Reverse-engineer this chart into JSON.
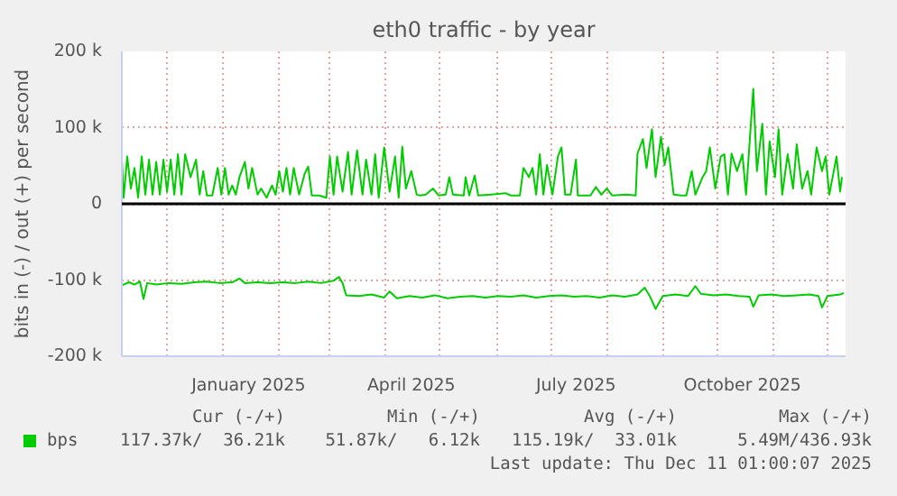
{
  "chart_data": {
    "type": "line",
    "title": "eth0 traffic - by year",
    "ylabel": "bits in (-) / out (+) per second",
    "xlim": [
      "2024-11-06",
      "2025-12-11"
    ],
    "xticks": [
      {
        "value": "2024-12-01",
        "label": null
      },
      {
        "value": "2025-01-01",
        "label": null
      },
      {
        "value": "2025-01-15",
        "label": "January 2025"
      },
      {
        "value": "2025-02-01",
        "label": null
      },
      {
        "value": "2025-03-01",
        "label": null
      },
      {
        "value": "2025-04-01",
        "label": null
      },
      {
        "value": "2025-04-15",
        "label": "April 2025"
      },
      {
        "value": "2025-05-01",
        "label": null
      },
      {
        "value": "2025-06-01",
        "label": null
      },
      {
        "value": "2025-07-01",
        "label": null
      },
      {
        "value": "2025-07-15",
        "label": "July 2025"
      },
      {
        "value": "2025-08-01",
        "label": null
      },
      {
        "value": "2025-09-01",
        "label": null
      },
      {
        "value": "2025-10-01",
        "label": null
      },
      {
        "value": "2025-10-15",
        "label": "October 2025"
      },
      {
        "value": "2025-11-01",
        "label": null
      },
      {
        "value": "2025-12-01",
        "label": null
      }
    ],
    "ylim": [
      -200,
      200
    ],
    "yticks": [
      {
        "value": -200,
        "label": "-200 k"
      },
      {
        "value": -100,
        "label": "-100 k"
      },
      {
        "value": 0,
        "label": "0"
      },
      {
        "value": 100,
        "label": "100 k"
      },
      {
        "value": 200,
        "label": "200 k"
      }
    ],
    "grid": true,
    "legend": "bottom",
    "ref_lines": [
      {
        "axis": "y",
        "value": 0,
        "label": null,
        "color": "#000000"
      }
    ],
    "annotations": [
      "Cur (-/+)",
      "Min (-/+)",
      "Avg (-/+)",
      "Max (-/+)",
      "117.37k/  36.21k",
      "51.87k/   6.12k",
      "115.19k/  33.01k",
      "5.49M/436.93k",
      "Last update: Thu Dec 11 01:00:07 2025"
    ],
    "series": [
      {
        "name": "bps",
        "color": "#00cc00",
        "x": [
          "2024-11-06",
          "2024-11-07",
          "2024-11-09",
          "2024-11-11",
          "2024-11-13",
          "2024-11-15",
          "2024-11-17",
          "2024-11-19",
          "2024-11-21",
          "2024-11-23",
          "2024-11-25",
          "2024-11-27",
          "2024-11-29",
          "2024-12-01",
          "2024-12-03",
          "2024-12-05",
          "2024-12-07",
          "2024-12-09",
          "2024-12-11",
          "2024-12-14",
          "2024-12-17",
          "2024-12-19",
          "2024-12-21",
          "2024-12-23",
          "2024-12-26",
          "2024-12-29",
          "2024-12-31",
          "2025-01-02",
          "2025-01-04",
          "2025-01-06",
          "2025-01-08",
          "2025-01-10",
          "2025-01-13",
          "2025-01-15",
          "2025-01-17",
          "2025-01-20",
          "2025-01-22",
          "2025-01-25",
          "2025-01-28",
          "2025-01-30",
          "2025-02-01",
          "2025-02-03",
          "2025-02-05",
          "2025-02-07",
          "2025-02-09",
          "2025-02-12",
          "2025-02-15",
          "2025-02-17",
          "2025-02-19",
          "2025-02-23",
          "2025-02-27",
          "2025-03-01",
          "2025-03-03",
          "2025-03-05",
          "2025-03-08",
          "2025-03-11",
          "2025-03-13",
          "2025-03-16",
          "2025-03-19",
          "2025-03-21",
          "2025-03-24",
          "2025-03-26",
          "2025-03-28",
          "2025-03-31",
          "2025-04-03",
          "2025-04-06",
          "2025-04-08",
          "2025-04-10",
          "2025-04-12",
          "2025-04-15",
          "2025-04-18",
          "2025-04-20",
          "2025-04-23",
          "2025-04-27",
          "2025-04-30",
          "2025-05-04",
          "2025-05-06",
          "2025-05-08",
          "2025-05-14",
          "2025-05-15",
          "2025-05-17",
          "2025-05-20",
          "2025-05-22",
          "2025-05-29",
          "2025-06-06",
          "2025-06-09",
          "2025-06-14",
          "2025-06-16",
          "2025-06-19",
          "2025-06-21",
          "2025-06-23",
          "2025-06-25",
          "2025-06-27",
          "2025-06-29",
          "2025-07-02",
          "2025-07-05",
          "2025-07-07",
          "2025-07-09",
          "2025-07-12",
          "2025-07-15",
          "2025-07-16",
          "2025-07-23",
          "2025-07-26",
          "2025-07-29",
          "2025-08-01",
          "2025-08-04",
          "2025-08-12",
          "2025-08-17",
          "2025-08-18",
          "2025-08-21",
          "2025-08-23",
          "2025-08-26",
          "2025-08-28",
          "2025-08-31",
          "2025-09-02",
          "2025-09-04",
          "2025-09-07",
          "2025-09-11",
          "2025-09-14",
          "2025-09-17",
          "2025-09-19",
          "2025-09-23",
          "2025-09-25",
          "2025-09-27",
          "2025-09-30",
          "2025-10-03",
          "2025-10-05",
          "2025-10-07",
          "2025-10-09",
          "2025-10-12",
          "2025-10-15",
          "2025-10-17",
          "2025-10-21",
          "2025-10-23",
          "2025-10-26",
          "2025-10-28",
          "2025-10-30",
          "2025-11-02",
          "2025-11-04",
          "2025-11-06",
          "2025-11-09",
          "2025-11-12",
          "2025-11-14",
          "2025-11-17",
          "2025-11-20",
          "2025-11-22",
          "2025-11-25",
          "2025-11-28",
          "2025-11-30",
          "2025-12-02",
          "2025-12-06",
          "2025-12-08",
          "2025-12-09"
        ],
        "values": [
          58,
          8,
          62,
          20,
          47,
          8,
          62,
          12,
          58,
          12,
          55,
          12,
          58,
          16,
          58,
          12,
          65,
          12,
          65,
          35,
          58,
          12,
          43,
          11,
          11,
          47,
          12,
          47,
          12,
          24,
          12,
          35,
          55,
          20,
          47,
          12,
          20,
          8,
          24,
          12,
          43,
          16,
          47,
          12,
          47,
          12,
          39,
          49,
          11,
          11,
          8,
          62,
          12,
          62,
          16,
          68,
          12,
          70,
          12,
          58,
          12,
          65,
          8,
          74,
          16,
          62,
          8,
          75,
          20,
          43,
          12,
          11,
          12,
          20,
          11,
          12,
          35,
          12,
          11,
          35,
          11,
          37,
          11,
          12,
          14,
          11,
          11,
          47,
          35,
          47,
          12,
          65,
          12,
          51,
          12,
          62,
          74,
          12,
          12,
          58,
          11,
          11,
          22,
          12,
          20,
          11,
          12,
          11,
          66,
          85,
          47,
          98,
          35,
          88,
          51,
          74,
          12,
          11,
          11,
          43,
          12,
          35,
          43,
          74,
          20,
          62,
          65,
          12,
          66,
          43,
          65,
          12,
          151,
          43,
          105,
          12,
          82,
          35,
          98,
          12,
          65,
          20,
          78,
          20,
          43,
          12,
          74,
          43,
          62,
          12,
          62,
          16,
          35
        ]
      },
      {
        "color": "#00cc00",
        "x": [
          "2024-11-06",
          "2024-11-10",
          "2024-11-13",
          "2024-11-16",
          "2024-11-18",
          "2024-11-20",
          "2024-11-25",
          "2024-12-02",
          "2024-12-09",
          "2024-12-16",
          "2024-12-23",
          "2024-12-30",
          "2025-01-06",
          "2025-01-10",
          "2025-01-13",
          "2025-01-20",
          "2025-01-27",
          "2025-02-03",
          "2025-02-10",
          "2025-02-17",
          "2025-02-24",
          "2025-03-03",
          "2025-03-06",
          "2025-03-08",
          "2025-03-10",
          "2025-03-17",
          "2025-03-24",
          "2025-03-31",
          "2025-04-03",
          "2025-04-07",
          "2025-04-14",
          "2025-04-21",
          "2025-04-28",
          "2025-05-05",
          "2025-05-12",
          "2025-05-19",
          "2025-05-26",
          "2025-06-02",
          "2025-06-09",
          "2025-06-16",
          "2025-06-23",
          "2025-06-30",
          "2025-07-07",
          "2025-07-14",
          "2025-07-21",
          "2025-07-28",
          "2025-08-04",
          "2025-08-11",
          "2025-08-18",
          "2025-08-22",
          "2025-08-25",
          "2025-08-28",
          "2025-09-01",
          "2025-09-08",
          "2025-09-15",
          "2025-09-19",
          "2025-09-22",
          "2025-09-29",
          "2025-10-06",
          "2025-10-13",
          "2025-10-19",
          "2025-10-21",
          "2025-10-24",
          "2025-10-31",
          "2025-11-07",
          "2025-11-14",
          "2025-11-21",
          "2025-11-26",
          "2025-11-28",
          "2025-12-01",
          "2025-12-08",
          "2025-12-10"
        ],
        "values": [
          -107,
          -103,
          -106,
          -102,
          -125,
          -104,
          -106,
          -104,
          -105,
          -103,
          -102,
          -104,
          -103,
          -98,
          -104,
          -103,
          -104,
          -103,
          -104,
          -102,
          -104,
          -101,
          -96,
          -104,
          -120,
          -121,
          -119,
          -123,
          -115,
          -124,
          -121,
          -123,
          -120,
          -124,
          -122,
          -121,
          -123,
          -121,
          -122,
          -120,
          -123,
          -121,
          -120,
          -122,
          -121,
          -123,
          -120,
          -122,
          -119,
          -110,
          -122,
          -138,
          -121,
          -119,
          -121,
          -108,
          -118,
          -120,
          -119,
          -121,
          -122,
          -135,
          -120,
          -119,
          -121,
          -120,
          -119,
          -121,
          -136,
          -121,
          -119,
          -117
        ]
      }
    ]
  }
}
